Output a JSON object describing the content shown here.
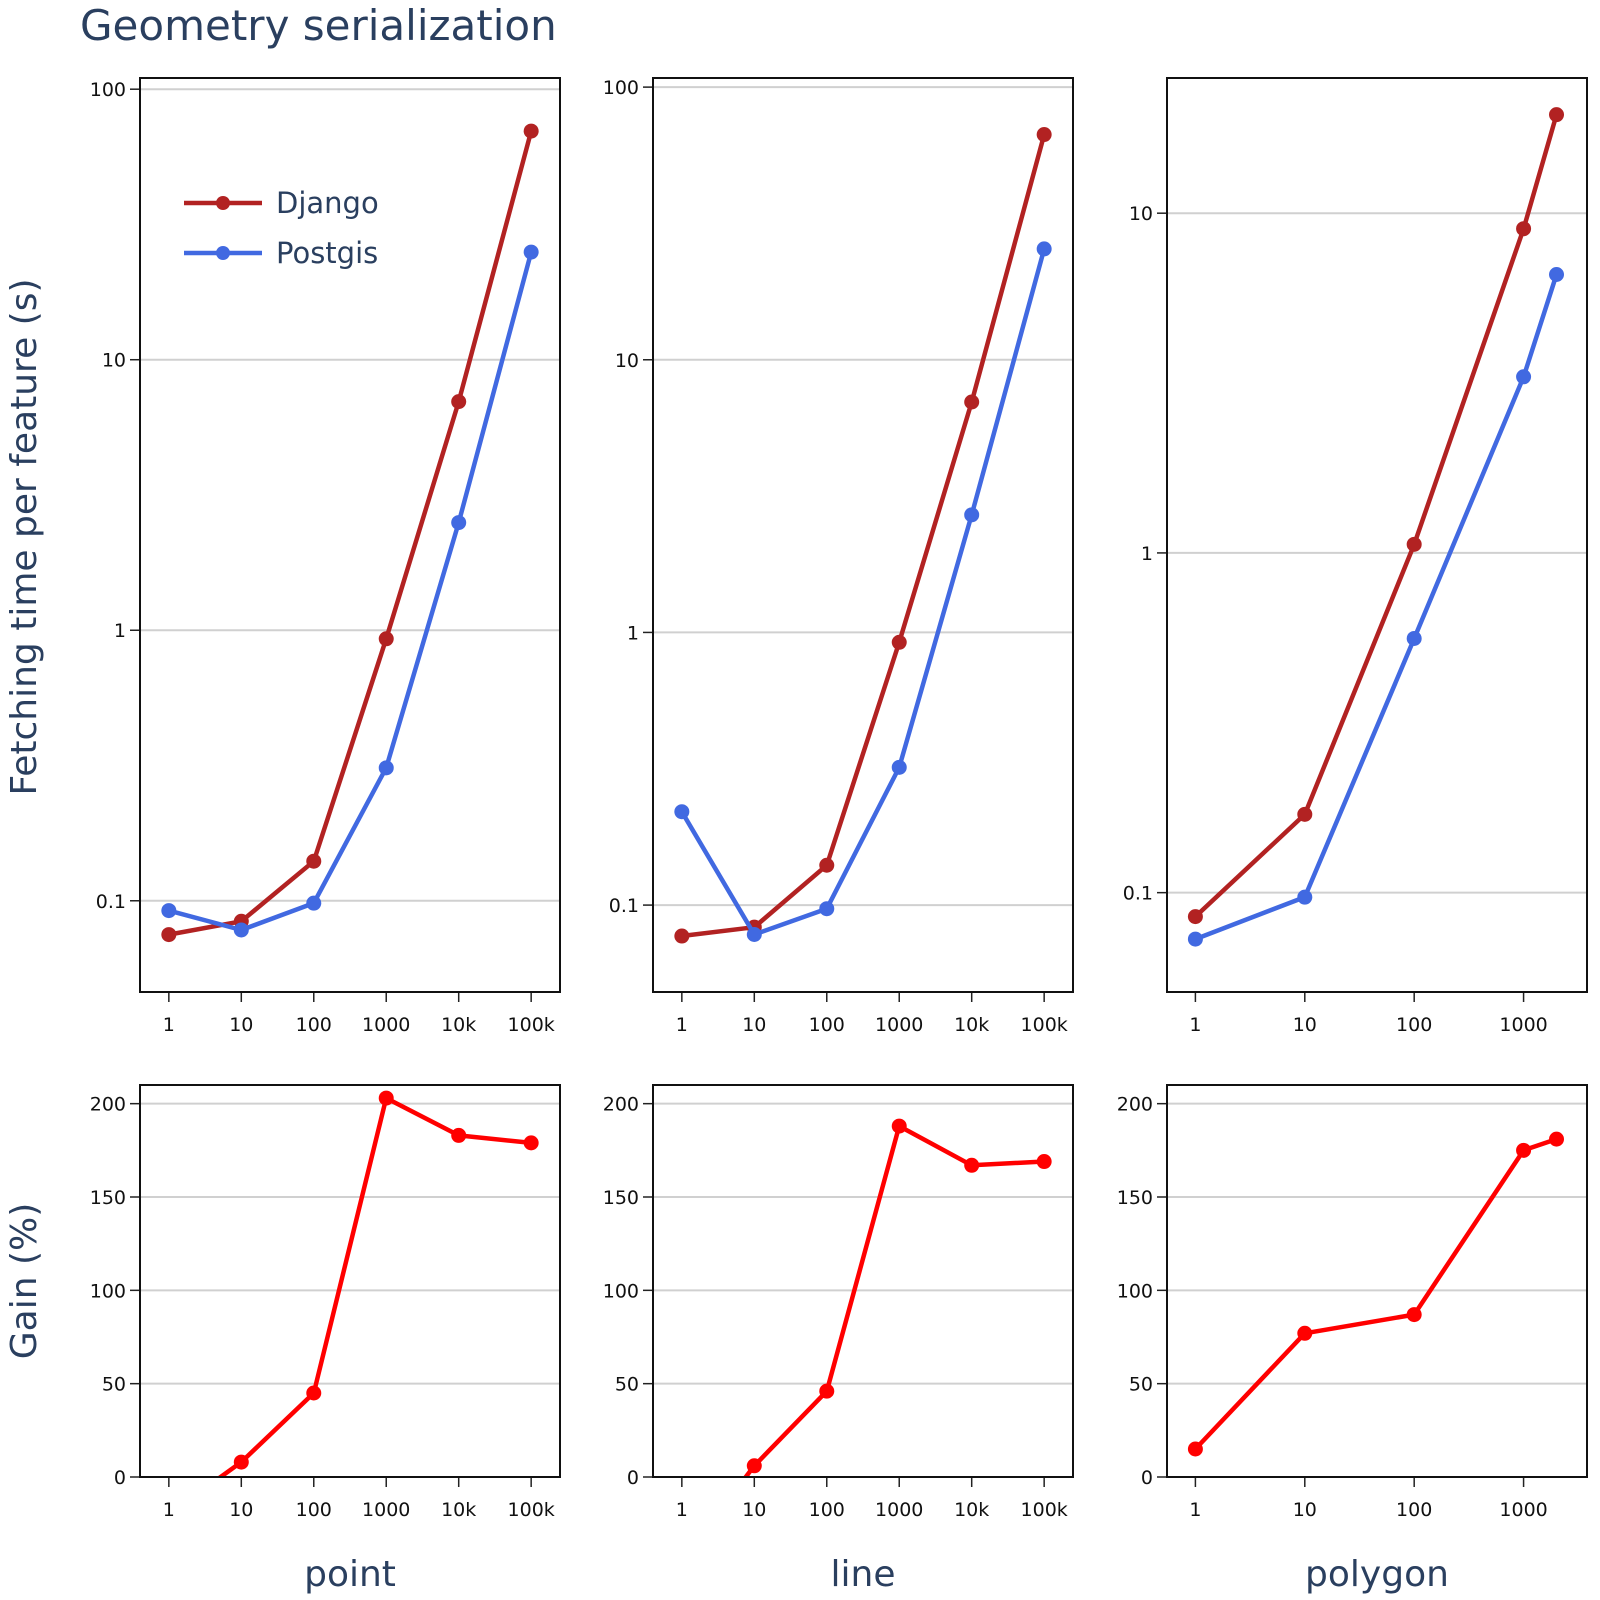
{
  "title": "Geometry serialization",
  "y_label_top": "Fetching time per feature (s)",
  "y_label_bottom": "Gain (%)",
  "colors": {
    "django": "#b22222",
    "postgis": "#4169e1",
    "gain": "#ff0000"
  },
  "chart_data": [
    {
      "type": "line",
      "panel": "point",
      "row": "time",
      "xscale": "log",
      "yscale": "log",
      "x": [
        1,
        10,
        100,
        1000,
        10000,
        100000
      ],
      "xticks": [
        "1",
        "10",
        "100",
        "1000",
        "10k",
        "100k"
      ],
      "xlim": [
        0.4,
        250000
      ],
      "ylim": [
        0.046,
        110
      ],
      "yticks": [
        "0.1",
        "1",
        "10",
        "100"
      ],
      "series": [
        {
          "name": "Django",
          "values": [
            0.075,
            0.084,
            0.14,
            0.93,
            7.0,
            70
          ]
        },
        {
          "name": "Postgis",
          "values": [
            0.092,
            0.078,
            0.098,
            0.31,
            2.5,
            25
          ]
        }
      ],
      "legend": "top-left",
      "grid": true
    },
    {
      "type": "line",
      "panel": "line",
      "row": "time",
      "xscale": "log",
      "yscale": "log",
      "x": [
        1,
        10,
        100,
        1000,
        10000,
        100000
      ],
      "xticks": [
        "1",
        "10",
        "100",
        "1000",
        "10k",
        "100k"
      ],
      "xlim": [
        0.4,
        250000
      ],
      "ylim": [
        0.048,
        108
      ],
      "yticks": [
        "0.1",
        "1",
        "10",
        "100"
      ],
      "series": [
        {
          "name": "Django",
          "values": [
            0.077,
            0.083,
            0.14,
            0.92,
            7.0,
            67
          ]
        },
        {
          "name": "Postgis",
          "values": [
            0.22,
            0.078,
            0.097,
            0.32,
            2.7,
            25.5
          ]
        }
      ],
      "grid": true
    },
    {
      "type": "line",
      "panel": "polygon",
      "row": "time",
      "xscale": "log",
      "yscale": "log",
      "x": [
        1,
        10,
        100,
        1000,
        2000
      ],
      "xticks": [
        "1",
        "10",
        "100",
        "1000"
      ],
      "xlim": [
        0.55,
        3800
      ],
      "ylim": [
        0.051,
        25
      ],
      "yticks": [
        "0.1",
        "1",
        "10"
      ],
      "series": [
        {
          "name": "Django",
          "values": [
            0.085,
            0.17,
            1.06,
            9.0,
            19.5
          ]
        },
        {
          "name": "Postgis",
          "values": [
            0.073,
            0.097,
            0.56,
            3.3,
            6.6
          ]
        }
      ],
      "grid": true
    },
    {
      "type": "line",
      "panel": "point",
      "row": "gain",
      "xscale": "log",
      "x": [
        1,
        10,
        100,
        1000,
        10000,
        100000
      ],
      "xticks": [
        "1",
        "10",
        "100",
        "1000",
        "10k",
        "100k"
      ],
      "xlim": [
        0.4,
        250000
      ],
      "ylim": [
        0,
        210
      ],
      "yticks": [
        "0",
        "50",
        "100",
        "150",
        "200"
      ],
      "series": [
        {
          "name": "",
          "values": [
            -20,
            8,
            45,
            203,
            183,
            179
          ]
        }
      ],
      "grid": true
    },
    {
      "type": "line",
      "panel": "line",
      "row": "gain",
      "xscale": "log",
      "x": [
        1,
        10,
        100,
        1000,
        10000,
        100000
      ],
      "xticks": [
        "1",
        "10",
        "100",
        "1000",
        "10k",
        "100k"
      ],
      "xlim": [
        0.4,
        250000
      ],
      "ylim": [
        0,
        210
      ],
      "yticks": [
        "0",
        "50",
        "100",
        "150",
        "200"
      ],
      "series": [
        {
          "name": "",
          "values": [
            -45,
            6,
            46,
            188,
            167,
            169
          ]
        }
      ],
      "grid": true
    },
    {
      "type": "line",
      "panel": "polygon",
      "row": "gain",
      "xscale": "log",
      "x": [
        1,
        10,
        100,
        1000,
        2000
      ],
      "xticks": [
        "1",
        "10",
        "100",
        "1000"
      ],
      "xlim": [
        0.55,
        3800
      ],
      "ylim": [
        0,
        210
      ],
      "yticks": [
        "0",
        "50",
        "100",
        "150",
        "200"
      ],
      "series": [
        {
          "name": "",
          "values": [
            15,
            77,
            87,
            175,
            181
          ]
        }
      ],
      "grid": true
    }
  ]
}
